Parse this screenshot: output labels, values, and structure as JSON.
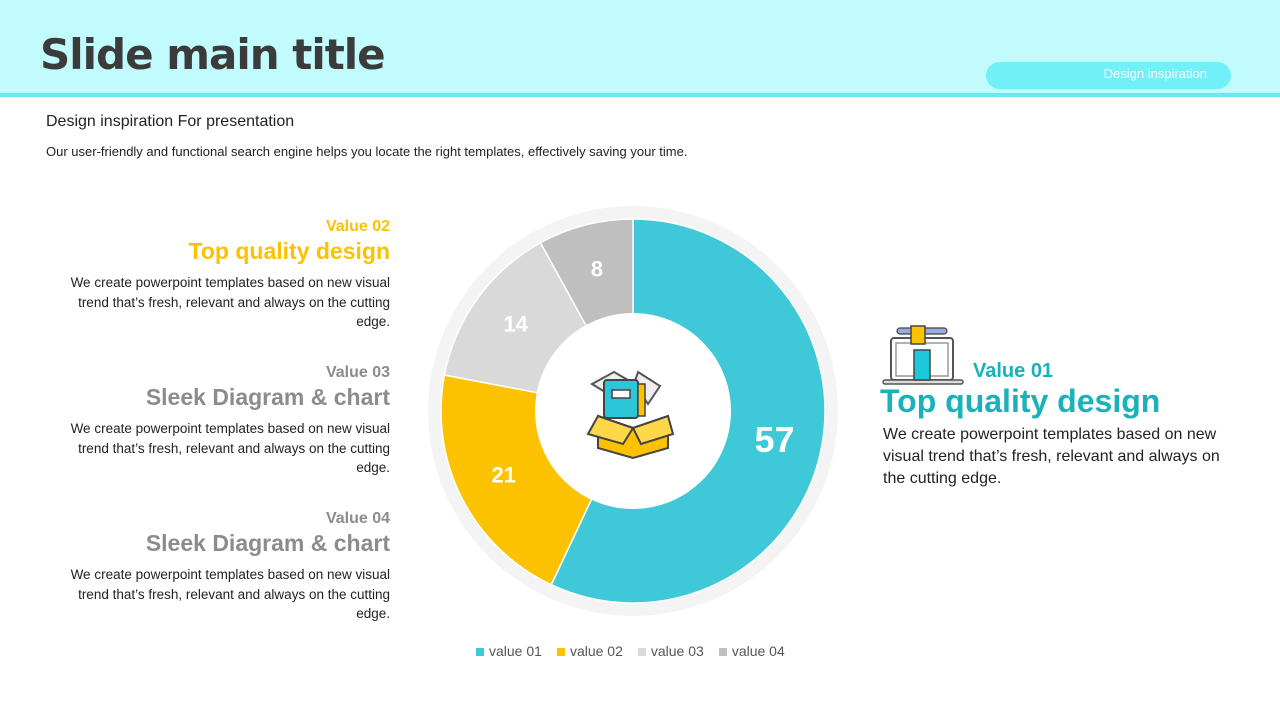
{
  "header": {
    "title": "Slide main title",
    "pill": "Design inspiration"
  },
  "subtitle": "Design inspiration For presentation",
  "description": "Our user-friendly and functional search engine helps you locate the right templates, effectively saving your time.",
  "left_blocks": [
    {
      "value": "Value 02",
      "heading": "Top quality design",
      "text": "We create powerpoint templates based on new visual trend that’s fresh, relevant and always on the cutting edge.",
      "color": "#fcc200"
    },
    {
      "value": "Value 03",
      "heading": "Sleek Diagram & chart",
      "text": "We create powerpoint templates based on new visual trend that’s fresh, relevant and always on the cutting edge.",
      "color": "#8c8c8c"
    },
    {
      "value": "Value 04",
      "heading": "Sleek Diagram & chart",
      "text": "We create powerpoint templates based on new visual trend that’s fresh, relevant and always on the cutting edge.",
      "color": "#8c8c8c"
    }
  ],
  "right_block": {
    "value": "Value 01",
    "heading": "Top quality design",
    "text": "We create powerpoint templates based on new visual trend that’s fresh, relevant and always on the cutting edge."
  },
  "chart_data": {
    "type": "pie",
    "donut": true,
    "categories": [
      "value 01",
      "value 02",
      "value 03",
      "value 04"
    ],
    "values": [
      57,
      21,
      14,
      8
    ],
    "colors": [
      "#3ec8d8",
      "#fcc200",
      "#d9d9d9",
      "#bfbfbf"
    ],
    "legend_position": "bottom"
  }
}
